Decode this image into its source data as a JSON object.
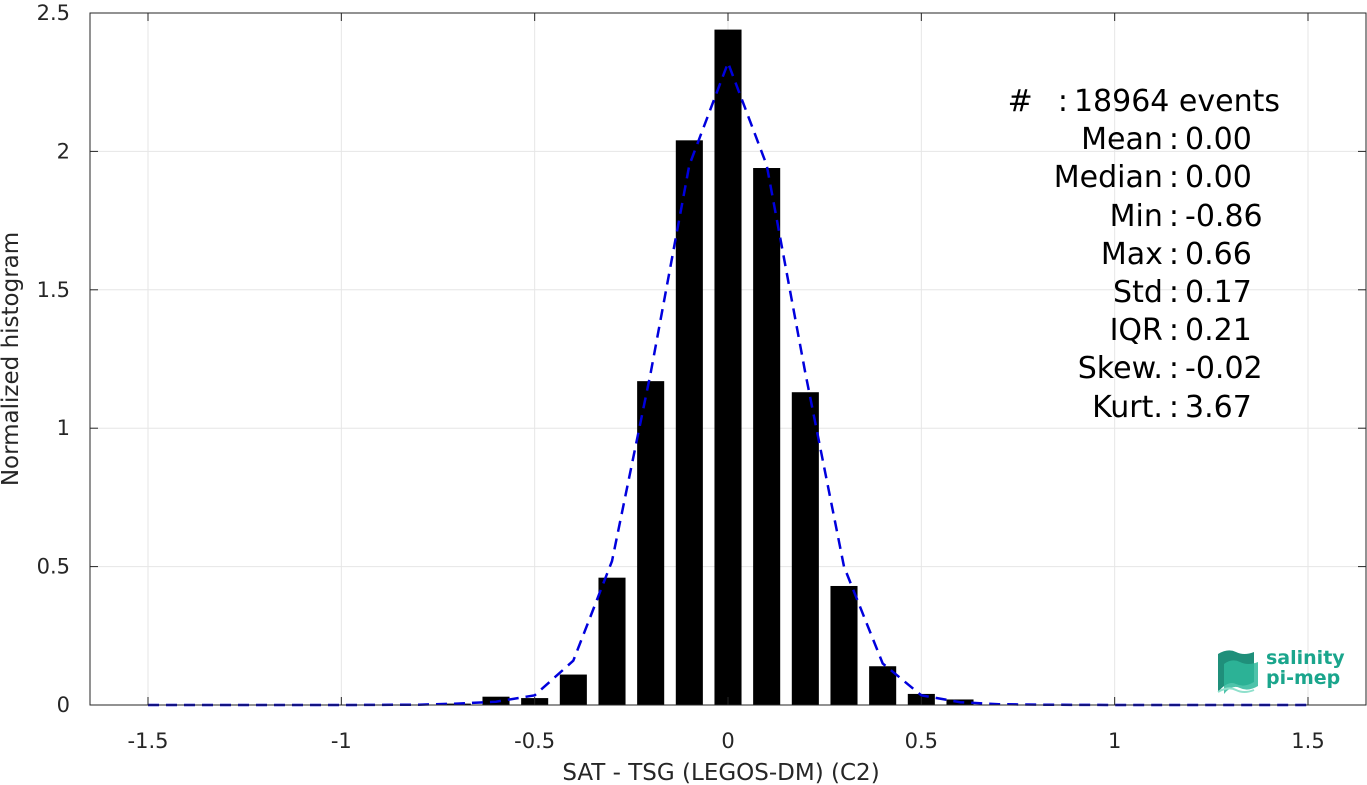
{
  "chart_data": {
    "type": "bar",
    "xlabel": "SAT - TSG (LEGOS-DM) (C2)",
    "ylabel": "Normalized histogram",
    "xlim": [
      -1.65,
      1.65
    ],
    "ylim": [
      0,
      2.5
    ],
    "x_ticks": [
      -1.5,
      -1,
      -0.5,
      0,
      0.5,
      1,
      1.5
    ],
    "x_tick_labels": [
      "-1.5",
      "-1",
      "-0.5",
      "0",
      "0.5",
      "1",
      "1.5"
    ],
    "y_ticks": [
      0,
      0.5,
      1,
      1.5,
      2,
      2.5
    ],
    "y_tick_labels": [
      "0",
      "0.5",
      "1",
      "1.5",
      "2",
      "2.5"
    ],
    "grid": true,
    "bar_width": 0.07,
    "bar_color": "#000000",
    "bars": [
      {
        "x": -0.7,
        "y": 0.005
      },
      {
        "x": -0.6,
        "y": 0.03
      },
      {
        "x": -0.5,
        "y": 0.025
      },
      {
        "x": -0.4,
        "y": 0.11
      },
      {
        "x": -0.3,
        "y": 0.46
      },
      {
        "x": -0.2,
        "y": 1.17
      },
      {
        "x": -0.1,
        "y": 2.04
      },
      {
        "x": 0.0,
        "y": 2.44
      },
      {
        "x": 0.1,
        "y": 1.94
      },
      {
        "x": 0.2,
        "y": 1.13
      },
      {
        "x": 0.3,
        "y": 0.43
      },
      {
        "x": 0.4,
        "y": 0.14
      },
      {
        "x": 0.5,
        "y": 0.04
      },
      {
        "x": 0.6,
        "y": 0.02
      }
    ],
    "fit_curve": {
      "style": "dashed",
      "color": "#0000dd",
      "x": [
        -1.5,
        -1.2,
        -1.0,
        -0.8,
        -0.7,
        -0.6,
        -0.5,
        -0.4,
        -0.3,
        -0.2,
        -0.1,
        0.0,
        0.1,
        0.2,
        0.3,
        0.4,
        0.5,
        0.6,
        0.7,
        0.8,
        1.0,
        1.5
      ],
      "y": [
        0,
        0,
        0,
        0.001,
        0.005,
        0.012,
        0.035,
        0.16,
        0.52,
        1.2,
        1.95,
        2.32,
        1.95,
        1.2,
        0.5,
        0.15,
        0.035,
        0.01,
        0.003,
        0.001,
        0,
        0
      ]
    }
  },
  "stats": [
    {
      "name": "#  ",
      "value": "18964 events"
    },
    {
      "name": "Mean",
      "value": "0.00"
    },
    {
      "name": "Median",
      "value": "0.00"
    },
    {
      "name": "Min",
      "value": "-0.86"
    },
    {
      "name": "Max",
      "value": "0.66"
    },
    {
      "name": "Std",
      "value": "0.17"
    },
    {
      "name": "IQR",
      "value": "0.21"
    },
    {
      "name": "Skew.",
      "value": "-0.02"
    },
    {
      "name": "Kurt.",
      "value": "3.67"
    }
  ],
  "logo": {
    "line1": "salinity",
    "line2": "pi-mep",
    "color": "#1aa58c"
  }
}
